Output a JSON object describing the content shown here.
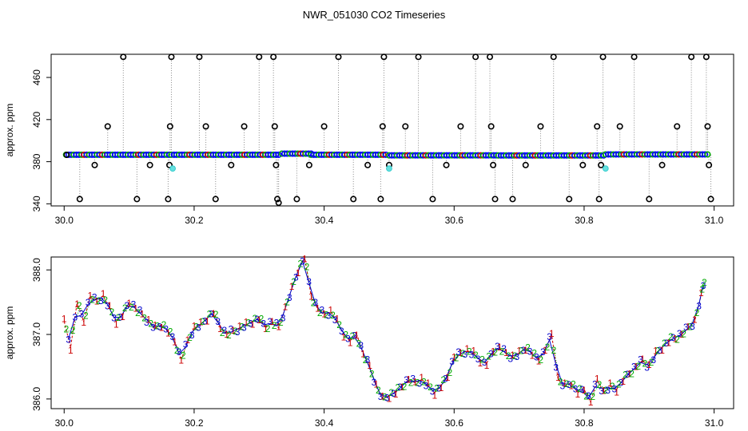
{
  "page_title": "NWR_051030  CO2 Timeseries",
  "chart_data": [
    {
      "type": "scatter",
      "panel": "top",
      "ylabel": "approx. ppm",
      "xlabel": "",
      "xlim": [
        29.98,
        31.03
      ],
      "ylim": [
        338,
        482
      ],
      "x_ticks": [
        30.0,
        30.2,
        30.4,
        30.6,
        30.8,
        31.0
      ],
      "x_tick_labels": [
        "30.0",
        "30.2",
        "30.4",
        "30.6",
        "30.8",
        "31.0"
      ],
      "y_ticks": [
        340,
        380,
        420,
        460
      ],
      "y_tick_labels": [
        "340",
        "380",
        "420",
        "460"
      ],
      "grid": false,
      "baseline_series": {
        "color": "#0000ff",
        "segments": [
          {
            "x_start": 30.003,
            "x_end": 30.162,
            "y": 386.6
          },
          {
            "x_start": 30.165,
            "x_end": 30.33,
            "y": 386.6
          },
          {
            "x_start": 30.335,
            "x_end": 30.38,
            "y": 387.6
          },
          {
            "x_start": 30.38,
            "x_end": 30.495,
            "y": 386.6
          },
          {
            "x_start": 30.5,
            "x_end": 30.665,
            "y": 386.0
          },
          {
            "x_start": 30.668,
            "x_end": 30.83,
            "y": 385.9
          },
          {
            "x_start": 30.833,
            "x_end": 30.99,
            "y": 386.9
          }
        ]
      },
      "outliers": [
        {
          "x": 30.004,
          "y": 386.5
        },
        {
          "x": 30.024,
          "y": 344.5
        },
        {
          "x": 30.047,
          "y": 376.8
        },
        {
          "x": 30.067,
          "y": 413.5
        },
        {
          "x": 30.091,
          "y": 479.5
        },
        {
          "x": 30.112,
          "y": 344.5
        },
        {
          "x": 30.132,
          "y": 376.8
        },
        {
          "x": 30.16,
          "y": 344.5
        },
        {
          "x": 30.162,
          "y": 376.8
        },
        {
          "x": 30.163,
          "y": 413.5
        },
        {
          "x": 30.165,
          "y": 479.5
        },
        {
          "x": 30.208,
          "y": 479.5
        },
        {
          "x": 30.218,
          "y": 413.5
        },
        {
          "x": 30.233,
          "y": 344.5
        },
        {
          "x": 30.257,
          "y": 376.8
        },
        {
          "x": 30.277,
          "y": 413.5
        },
        {
          "x": 30.3,
          "y": 479.5
        },
        {
          "x": 30.322,
          "y": 479.5
        },
        {
          "x": 30.324,
          "y": 413.5
        },
        {
          "x": 30.326,
          "y": 376.8
        },
        {
          "x": 30.328,
          "y": 344.5
        },
        {
          "x": 30.33,
          "y": 341.0
        },
        {
          "x": 30.358,
          "y": 344.5
        },
        {
          "x": 30.377,
          "y": 376.8
        },
        {
          "x": 30.4,
          "y": 413.5
        },
        {
          "x": 30.422,
          "y": 479.5
        },
        {
          "x": 30.445,
          "y": 344.5
        },
        {
          "x": 30.467,
          "y": 376.8
        },
        {
          "x": 30.487,
          "y": 344.5
        },
        {
          "x": 30.49,
          "y": 413.5
        },
        {
          "x": 30.492,
          "y": 479.5
        },
        {
          "x": 30.5,
          "y": 376.8
        },
        {
          "x": 30.525,
          "y": 413.5
        },
        {
          "x": 30.545,
          "y": 479.5
        },
        {
          "x": 30.567,
          "y": 344.5
        },
        {
          "x": 30.588,
          "y": 376.8
        },
        {
          "x": 30.61,
          "y": 413.5
        },
        {
          "x": 30.633,
          "y": 479.5
        },
        {
          "x": 30.655,
          "y": 479.5
        },
        {
          "x": 30.657,
          "y": 413.5
        },
        {
          "x": 30.66,
          "y": 376.8
        },
        {
          "x": 30.663,
          "y": 344.5
        },
        {
          "x": 30.69,
          "y": 344.5
        },
        {
          "x": 30.71,
          "y": 376.8
        },
        {
          "x": 30.733,
          "y": 413.5
        },
        {
          "x": 30.753,
          "y": 479.5
        },
        {
          "x": 30.777,
          "y": 344.5
        },
        {
          "x": 30.798,
          "y": 376.8
        },
        {
          "x": 30.82,
          "y": 413.5
        },
        {
          "x": 30.823,
          "y": 344.5
        },
        {
          "x": 30.826,
          "y": 376.8
        },
        {
          "x": 30.829,
          "y": 479.5
        },
        {
          "x": 30.855,
          "y": 413.5
        },
        {
          "x": 30.877,
          "y": 479.5
        },
        {
          "x": 30.9,
          "y": 344.5
        },
        {
          "x": 30.92,
          "y": 376.8
        },
        {
          "x": 30.943,
          "y": 413.5
        },
        {
          "x": 30.965,
          "y": 479.5
        },
        {
          "x": 30.988,
          "y": 479.5
        },
        {
          "x": 30.99,
          "y": 413.5
        },
        {
          "x": 30.992,
          "y": 376.8
        },
        {
          "x": 30.995,
          "y": 344.5
        }
      ],
      "cyan_points": [
        {
          "x": 30.167,
          "y": 373.5
        },
        {
          "x": 30.5,
          "y": 373.5
        },
        {
          "x": 30.833,
          "y": 373.5
        }
      ]
    },
    {
      "type": "line",
      "panel": "bottom",
      "ylabel": "approx. ppm",
      "xlabel": "",
      "xlim": [
        29.98,
        31.03
      ],
      "ylim": [
        385.85,
        388.2
      ],
      "x_ticks": [
        30.0,
        30.2,
        30.4,
        30.6,
        30.8,
        31.0
      ],
      "x_tick_labels": [
        "30.0",
        "30.2",
        "30.4",
        "30.6",
        "30.8",
        "31.0"
      ],
      "y_ticks": [
        386.0,
        387.0,
        388.0
      ],
      "y_tick_labels": [
        "386.0",
        "387.0",
        "388.0"
      ],
      "grid": false,
      "point_labels": [
        "1",
        "2",
        "3"
      ],
      "series": [
        {
          "values_x": [
            30.0,
            30.01,
            30.02,
            30.03,
            30.04,
            30.05,
            30.06,
            30.07,
            30.08,
            30.09,
            30.1,
            30.11,
            30.12,
            30.13,
            30.14,
            30.15,
            30.16,
            30.17,
            30.18,
            30.19,
            30.2,
            30.21,
            30.22,
            30.23,
            30.24,
            30.25,
            30.26,
            30.27,
            30.28,
            30.29,
            30.3,
            30.31,
            30.32,
            30.33,
            30.34,
            30.35,
            30.36,
            30.37,
            30.38,
            30.39,
            30.4,
            30.41,
            30.42,
            30.43,
            30.44,
            30.45,
            30.46,
            30.47,
            30.48,
            30.49,
            30.5,
            30.51,
            30.52,
            30.53,
            30.54,
            30.55,
            30.56,
            30.57,
            30.58,
            30.59,
            30.6,
            30.61,
            30.62,
            30.63,
            30.64,
            30.65,
            30.66,
            30.67,
            30.68,
            30.69,
            30.7,
            30.71,
            30.72,
            30.73,
            30.74,
            30.75,
            30.76,
            30.77,
            30.78,
            30.79,
            30.8,
            30.81,
            30.82,
            30.83,
            30.84,
            30.85,
            30.86,
            30.87,
            30.88,
            30.89,
            30.9,
            30.91,
            30.92,
            30.93,
            30.94,
            30.95,
            30.96,
            30.97,
            30.98,
            30.985
          ],
          "values_y": [
            387.2,
            386.8,
            387.5,
            387.2,
            387.6,
            387.5,
            387.6,
            387.4,
            387.2,
            387.3,
            387.5,
            387.4,
            387.3,
            387.2,
            387.1,
            387.15,
            387.05,
            386.9,
            386.6,
            386.9,
            387.1,
            387.15,
            387.25,
            387.35,
            387.1,
            387.0,
            387.05,
            387.1,
            387.15,
            387.2,
            387.25,
            387.1,
            387.2,
            387.1,
            387.4,
            387.7,
            388.0,
            388.2,
            387.6,
            387.4,
            387.3,
            387.35,
            387.2,
            387.0,
            386.9,
            387.0,
            386.7,
            386.5,
            386.2,
            386.0,
            386.05,
            386.1,
            386.2,
            386.3,
            386.25,
            386.3,
            386.2,
            386.1,
            386.2,
            386.35,
            386.65,
            386.7,
            386.75,
            386.7,
            386.6,
            386.55,
            386.75,
            386.8,
            386.7,
            386.65,
            386.7,
            386.8,
            386.7,
            386.6,
            386.75,
            387.0,
            386.3,
            386.2,
            386.25,
            386.1,
            386.15,
            385.95,
            386.3,
            386.1,
            386.2,
            386.15,
            386.3,
            386.4,
            386.5,
            386.6,
            386.5,
            386.7,
            386.8,
            386.9,
            386.95,
            387.0,
            387.1,
            387.2,
            387.6,
            387.85
          ]
        }
      ]
    }
  ]
}
